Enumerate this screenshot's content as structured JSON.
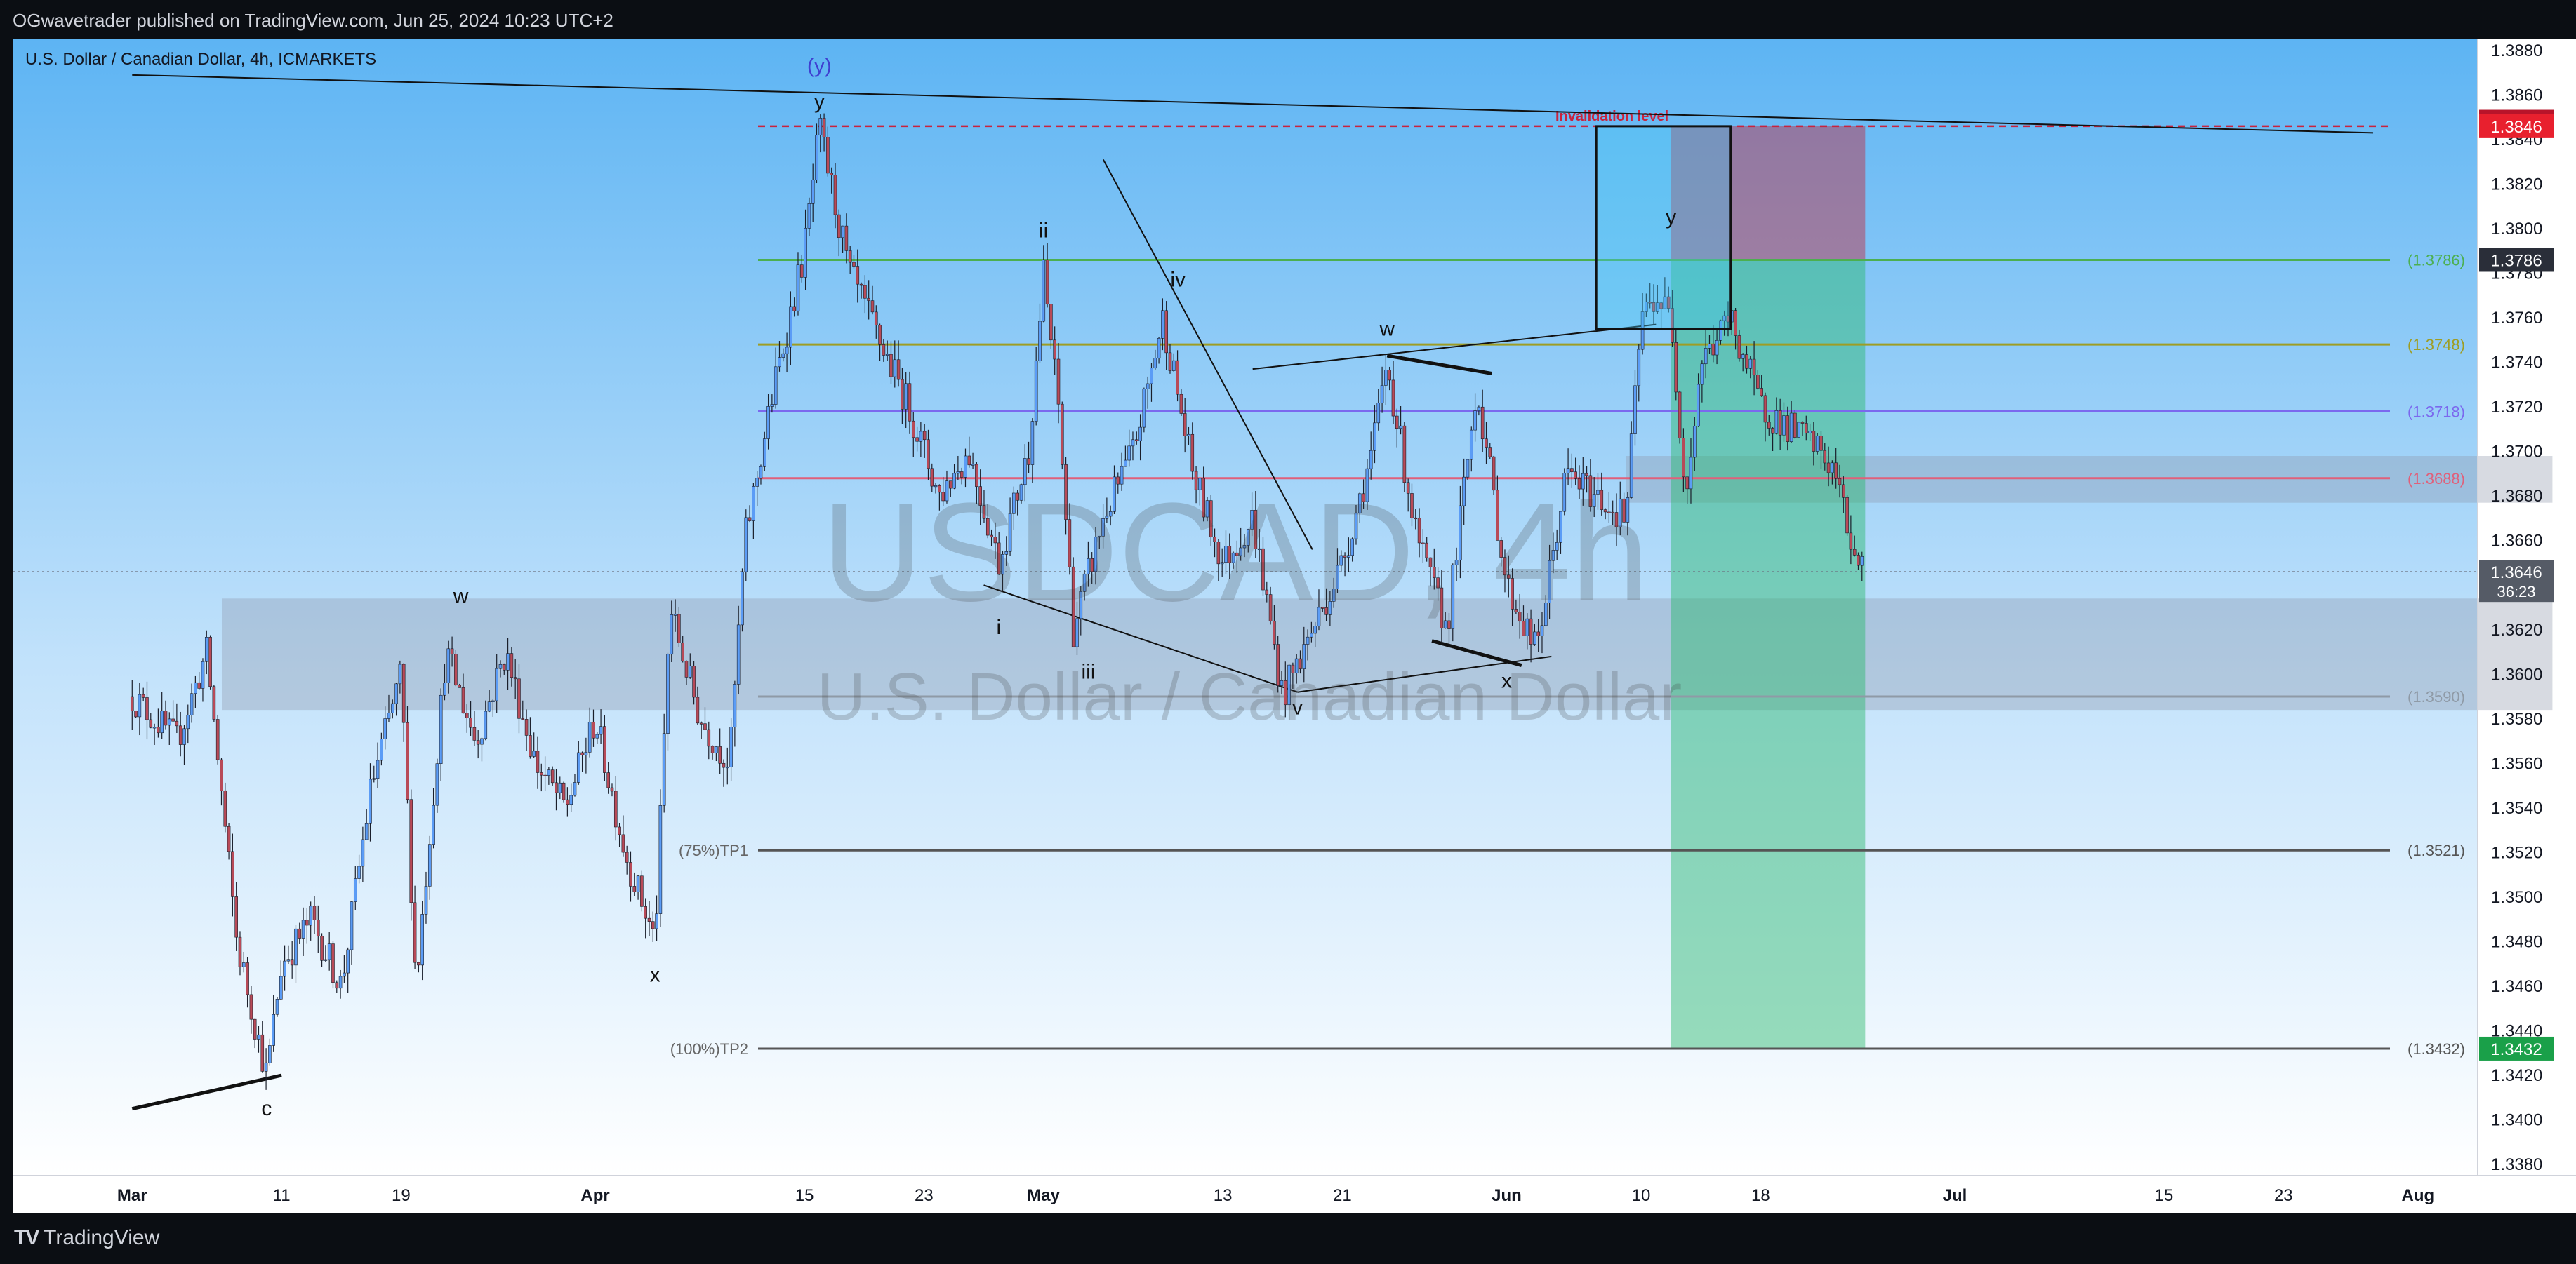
{
  "header": {
    "published_text": "OGwavetrader published on TradingView.com, Jun 25, 2024 10:23 UTC+2"
  },
  "footer": {
    "logo_text": "TradingView",
    "logo_icon": "tradingview-logo-icon"
  },
  "colors": {
    "bullish": "#5b9cf6",
    "bearish": "#b84a58",
    "up_box": "#27b86b",
    "down_box": "#c1293d"
  },
  "chart_data": {
    "type": "candlestick",
    "symbol_line": "U.S. Dollar / Canadian Dollar, 4h, ICMARKETS",
    "watermark": {
      "symbol": "USDCAD, 4h",
      "description": "U.S. Dollar / Canadian Dollar"
    },
    "ylim": [
      1.3375,
      1.3885
    ],
    "y_ticks": [
      "1.3380",
      "1.3400",
      "1.3420",
      "1.3440",
      "1.3460",
      "1.3480",
      "1.3500",
      "1.3520",
      "1.3540",
      "1.3560",
      "1.3580",
      "1.3600",
      "1.3620",
      "1.3640",
      "1.3660",
      "1.3680",
      "1.3700",
      "1.3720",
      "1.3740",
      "1.3760",
      "1.3780",
      "1.3800",
      "1.3820",
      "1.3840",
      "1.3860",
      "1.3880"
    ],
    "x_ticks": [
      {
        "label": "Mar",
        "date": "2024-03-01",
        "bold": true
      },
      {
        "label": "11",
        "date": "2024-03-11"
      },
      {
        "label": "19",
        "date": "2024-03-19"
      },
      {
        "label": "Apr",
        "date": "2024-04-01",
        "bold": true
      },
      {
        "label": "15",
        "date": "2024-04-15"
      },
      {
        "label": "23",
        "date": "2024-04-23"
      },
      {
        "label": "May",
        "date": "2024-05-01",
        "bold": true
      },
      {
        "label": "13",
        "date": "2024-05-13"
      },
      {
        "label": "21",
        "date": "2024-05-21"
      },
      {
        "label": "Jun",
        "date": "2024-06-01",
        "bold": true
      },
      {
        "label": "10",
        "date": "2024-06-10"
      },
      {
        "label": "18",
        "date": "2024-06-18"
      },
      {
        "label": "Jul",
        "date": "2024-07-01",
        "bold": true
      },
      {
        "label": "15",
        "date": "2024-07-15"
      },
      {
        "label": "23",
        "date": "2024-07-23"
      },
      {
        "label": "Aug",
        "date": "2024-08-01",
        "bold": true
      }
    ],
    "path": [
      [
        "2024-03-01",
        1.359
      ],
      [
        "2024-03-04",
        1.357
      ],
      [
        "2024-03-06",
        1.361
      ],
      [
        "2024-03-08",
        1.348
      ],
      [
        "2024-03-10",
        1.342
      ],
      [
        "2024-03-11",
        1.347
      ],
      [
        "2024-03-13",
        1.349
      ],
      [
        "2024-03-15",
        1.346
      ],
      [
        "2024-03-17",
        1.355
      ],
      [
        "2024-03-19",
        1.36
      ],
      [
        "2024-03-20",
        1.346
      ],
      [
        "2024-03-22",
        1.361
      ],
      [
        "2024-03-24",
        1.357
      ],
      [
        "2024-03-26",
        1.361
      ],
      [
        "2024-03-28",
        1.356
      ],
      [
        "2024-03-30",
        1.354
      ],
      [
        "2024-04-01",
        1.358
      ],
      [
        "2024-04-03",
        1.352
      ],
      [
        "2024-04-05",
        1.348
      ],
      [
        "2024-04-06",
        1.363
      ],
      [
        "2024-04-08",
        1.358
      ],
      [
        "2024-04-10",
        1.356
      ],
      [
        "2024-04-11",
        1.366
      ],
      [
        "2024-04-13",
        1.373
      ],
      [
        "2024-04-15",
        1.379
      ],
      [
        "2024-04-16",
        1.3845
      ],
      [
        "2024-04-18",
        1.378
      ],
      [
        "2024-04-20",
        1.375
      ],
      [
        "2024-04-22",
        1.372
      ],
      [
        "2024-04-24",
        1.368
      ],
      [
        "2024-04-26",
        1.37
      ],
      [
        "2024-04-28",
        1.365
      ],
      [
        "2024-04-30",
        1.37
      ],
      [
        "2024-05-01",
        1.378
      ],
      [
        "2024-05-02",
        1.372
      ],
      [
        "2024-05-03",
        1.362
      ],
      [
        "2024-05-05",
        1.367
      ],
      [
        "2024-05-07",
        1.37
      ],
      [
        "2024-05-09",
        1.376
      ],
      [
        "2024-05-11",
        1.369
      ],
      [
        "2024-05-13",
        1.365
      ],
      [
        "2024-05-15",
        1.367
      ],
      [
        "2024-05-17",
        1.359
      ],
      [
        "2024-05-19",
        1.362
      ],
      [
        "2024-05-21",
        1.365
      ],
      [
        "2024-05-23",
        1.37
      ],
      [
        "2024-05-24",
        1.374
      ],
      [
        "2024-05-26",
        1.366
      ],
      [
        "2024-05-28",
        1.362
      ],
      [
        "2024-05-30",
        1.373
      ],
      [
        "2024-06-01",
        1.364
      ],
      [
        "2024-06-03",
        1.361
      ],
      [
        "2024-06-05",
        1.369
      ],
      [
        "2024-06-07",
        1.368
      ],
      [
        "2024-06-09",
        1.367
      ],
      [
        "2024-06-10",
        1.376
      ],
      [
        "2024-06-11",
        1.377
      ],
      [
        "2024-06-12",
        1.376
      ],
      [
        "2024-06-13",
        1.368
      ],
      [
        "2024-06-14",
        1.374
      ],
      [
        "2024-06-16",
        1.376
      ],
      [
        "2024-06-18",
        1.372
      ],
      [
        "2024-06-20",
        1.371
      ],
      [
        "2024-06-22",
        1.37
      ],
      [
        "2024-06-23",
        1.369
      ],
      [
        "2024-06-24",
        1.366
      ],
      [
        "2024-06-25",
        1.3646
      ]
    ],
    "horizontal_levels": [
      {
        "value": 1.3786,
        "label": "(1.3786)",
        "color": "#4caf50"
      },
      {
        "value": 1.3748,
        "label": "(1.3748)",
        "color": "#9e9d24"
      },
      {
        "value": 1.3718,
        "label": "(1.3718)",
        "color": "#7b68ee"
      },
      {
        "value": 1.3688,
        "label": "(1.3688)",
        "color": "#e0607a"
      },
      {
        "value": 1.359,
        "label": "(1.3590)",
        "color": "#8f9aa6"
      },
      {
        "value": 1.3521,
        "label": "(1.3521)",
        "color": "#555555",
        "left_label": "(75%)TP1"
      },
      {
        "value": 1.3432,
        "label": "(1.3432)",
        "color": "#555555",
        "left_label": "(100%)TP2"
      }
    ],
    "invalidation": {
      "value": 1.3846,
      "label": "Invalidation level",
      "color": "#c8233e"
    },
    "price_badges": [
      {
        "value": "1.3848",
        "color": "#b8142a"
      },
      {
        "value": "1.3846",
        "color": "#e8202e"
      },
      {
        "value": "1.3786",
        "color": "#2a2e39"
      },
      {
        "value": "1.3646",
        "sub": "36:23",
        "color": "#555b66"
      },
      {
        "value": "1.3432",
        "color": "#1aa049"
      }
    ],
    "zones": [
      {
        "from": "2024-03-07",
        "to": "2024-08-10",
        "low": 1.3584,
        "high": 1.3634
      },
      {
        "from": "2024-06-09",
        "to": "2024-08-10",
        "low": 1.3677,
        "high": 1.3698
      }
    ],
    "position": {
      "from": "2024-06-12",
      "to": "2024-06-25",
      "entry": 1.3786,
      "stop": 1.3846,
      "target": 1.3432
    },
    "box": {
      "from": "2024-06-07",
      "to": "2024-06-16",
      "low": 1.3755,
      "high": 1.3846
    },
    "wave_labels": [
      {
        "text": "(y)",
        "date": "2024-04-16",
        "value": 1.387,
        "color": "#3f3fd0"
      },
      {
        "text": "y",
        "date": "2024-04-16",
        "value": 1.3854
      },
      {
        "text": "w",
        "date": "2024-03-23",
        "value": 1.3632
      },
      {
        "text": "x",
        "date": "2024-04-05",
        "value": 1.3462
      },
      {
        "text": "c",
        "date": "2024-03-10",
        "value": 1.3402
      },
      {
        "text": "ii",
        "date": "2024-05-01",
        "value": 1.3796
      },
      {
        "text": "iv",
        "date": "2024-05-10",
        "value": 1.3774
      },
      {
        "text": "i",
        "date": "2024-04-28",
        "value": 1.3618
      },
      {
        "text": "iii",
        "date": "2024-05-04",
        "value": 1.3598
      },
      {
        "text": "v",
        "date": "2024-05-18",
        "value": 1.3582
      },
      {
        "text": "w",
        "date": "2024-05-24",
        "value": 1.3752
      },
      {
        "text": "x",
        "date": "2024-06-01",
        "value": 1.3594
      },
      {
        "text": "y",
        "date": "2024-06-12",
        "value": 1.3802
      }
    ],
    "trendlines": [
      {
        "from": [
          "2024-03-01",
          1.3869
        ],
        "to": [
          "2024-07-29",
          1.3843
        ],
        "width": 2
      },
      {
        "from": [
          "2024-03-01",
          1.3405
        ],
        "to": [
          "2024-03-11",
          1.342
        ],
        "width": 5
      },
      {
        "from": [
          "2024-04-27",
          1.364
        ],
        "to": [
          "2024-05-18",
          1.3592
        ],
        "width": 2
      },
      {
        "from": [
          "2024-05-18",
          1.3592
        ],
        "to": [
          "2024-06-04",
          1.3608
        ],
        "width": 2
      },
      {
        "from": [
          "2024-05-05",
          1.3831
        ],
        "to": [
          "2024-05-19",
          1.3656
        ],
        "width": 2
      },
      {
        "from": [
          "2024-05-15",
          1.3737
        ],
        "to": [
          "2024-06-11",
          1.3757
        ],
        "width": 2
      },
      {
        "from": [
          "2024-05-24",
          1.3743
        ],
        "to": [
          "2024-05-31",
          1.3735
        ],
        "width": 5
      },
      {
        "from": [
          "2024-05-27",
          1.3615
        ],
        "to": [
          "2024-06-02",
          1.3604
        ],
        "width": 5
      }
    ]
  }
}
